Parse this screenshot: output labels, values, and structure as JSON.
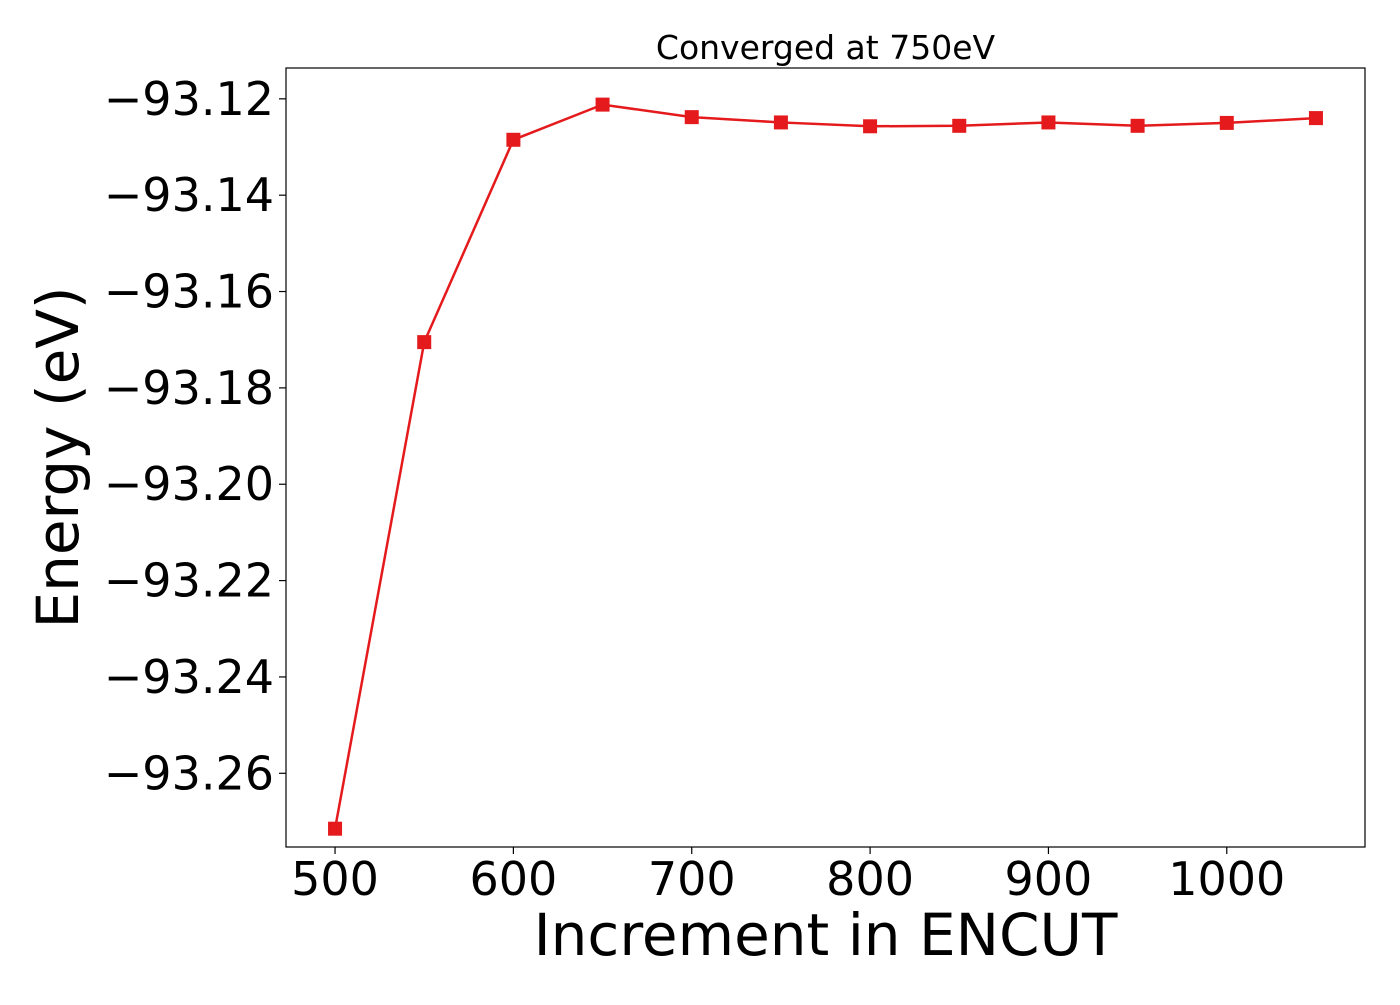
{
  "chart_data": {
    "type": "line",
    "title": "Converged at 750eV",
    "xlabel": "Increment in ENCUT",
    "ylabel": "Energy (eV)",
    "x": [
      500,
      550,
      600,
      650,
      700,
      750,
      800,
      850,
      900,
      950,
      1000,
      1050
    ],
    "series": [
      {
        "values": [
          -93.2715,
          -93.1705,
          -93.1285,
          -93.1212,
          -93.1238,
          -93.1249,
          -93.1257,
          -93.1256,
          -93.1249,
          -93.1256,
          -93.125,
          -93.124
        ],
        "color": "#e41a1c",
        "marker": "square"
      }
    ],
    "xlim": [
      472.5,
      1077.5
    ],
    "ylim": [
      -93.2753,
      -93.1136
    ],
    "xticks": [
      500,
      600,
      700,
      800,
      900,
      1000
    ],
    "xtick_labels": [
      "500",
      "600",
      "700",
      "800",
      "900",
      "1000"
    ],
    "yticks": [
      -93.12,
      -93.14,
      -93.16,
      -93.18,
      -93.2,
      -93.22,
      -93.24,
      -93.26
    ],
    "ytick_labels": [
      "−93.12",
      "−93.14",
      "−93.16",
      "−93.18",
      "−93.20",
      "−93.22",
      "−93.24",
      "−93.26"
    ],
    "grid": false,
    "legend": false
  }
}
